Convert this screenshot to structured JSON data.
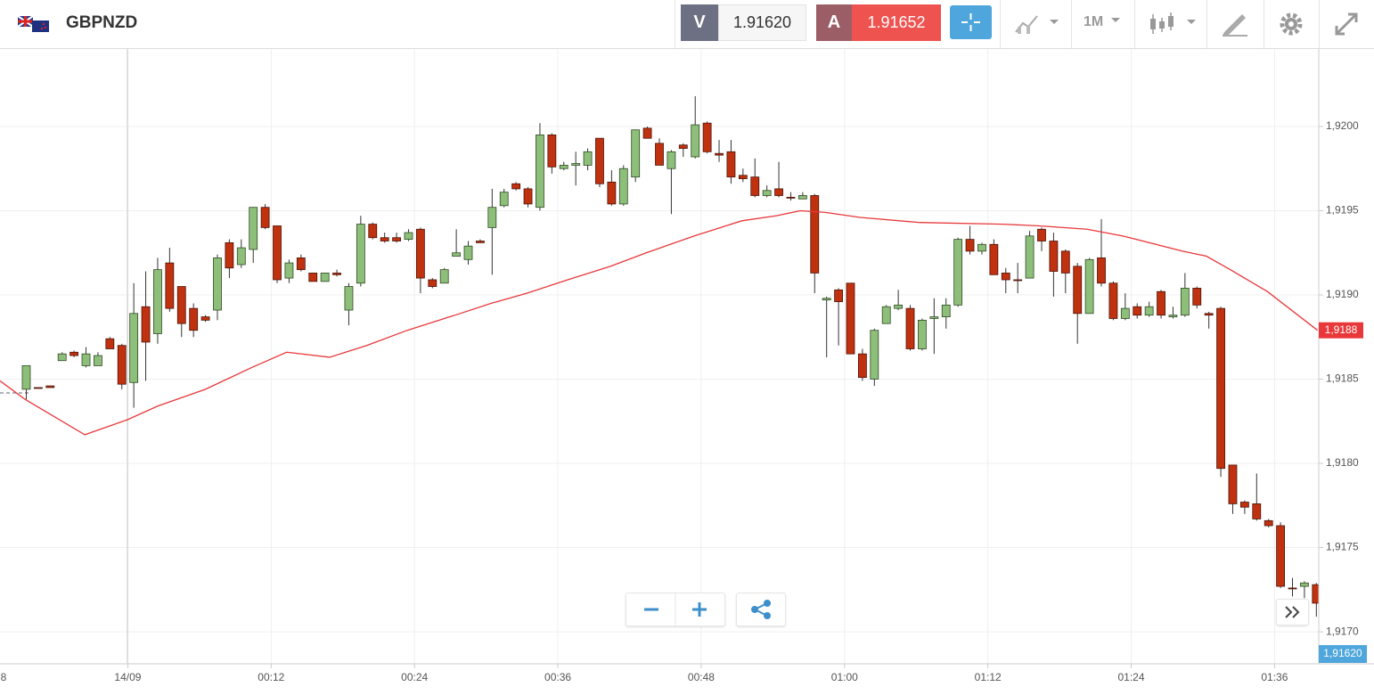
{
  "header": {
    "symbol": "GBPNZD",
    "bid_label": "V",
    "bid": "1.91620",
    "ask_label": "A",
    "ask": "1.91652",
    "timeframe": "1M"
  },
  "chart_data": {
    "type": "candlestick",
    "up_color": "#8dbf7b",
    "down_color": "#c0310f",
    "x": [
      -8.5,
      -7.5,
      -6.5,
      -5.5,
      -4.5,
      -3.5,
      -2.5,
      -1.5,
      -0.5,
      0.5,
      1.5,
      2.5,
      3.5,
      4.5,
      5.5,
      6.5,
      7.5,
      8.5,
      9.5,
      10.5,
      11.5,
      12.5,
      13.5,
      14.5,
      15.5,
      16.5,
      17.5,
      18.5,
      19.5,
      20.5,
      21.5,
      22.5,
      23.5,
      24.5,
      25.5,
      26.5,
      27.5,
      28.5,
      29.5,
      30.5,
      31.5,
      32.5,
      33.5,
      34.5,
      35.5,
      36.5,
      37.5,
      38.5,
      39.5,
      40.5,
      41.5,
      42.5,
      43.5,
      44.5,
      45.5,
      46.5,
      47.5,
      48.5,
      49.5,
      50.5,
      51.5,
      52.5,
      53.5,
      54.5,
      55.5,
      56.5,
      57.5,
      58.5,
      59.5,
      60.5,
      61.5,
      62.5,
      63.5,
      64.5,
      65.5,
      66.5,
      67.5,
      68.5,
      69.5,
      70.5,
      71.5,
      72.5,
      73.5,
      74.5,
      75.5,
      76.5,
      77.5,
      78.5,
      79.5,
      80.5,
      81.5,
      82.5,
      83.5,
      84.5,
      85.5,
      86.5,
      87.5,
      88.5,
      89.5,
      90.5,
      91.5,
      92.5,
      93.5,
      94.5,
      95.5,
      96.5,
      97.5,
      98.5,
      99.5
    ],
    "open": [
      1.91844,
      1.91845,
      1.91846,
      1.91861,
      1.91866,
      1.91858,
      1.91858,
      1.91874,
      1.9187,
      1.91848,
      1.91893,
      1.91877,
      1.91919,
      1.91905,
      1.91892,
      1.91887,
      1.91891,
      1.91931,
      1.91918,
      1.91927,
      1.91952,
      1.91941,
      1.9191,
      1.91922,
      1.91913,
      1.91908,
      1.91913,
      1.91891,
      1.91907,
      1.91942,
      1.91934,
      1.91934,
      1.91933,
      1.91939,
      1.91909,
      1.91907,
      1.91923,
      1.91921,
      1.91932,
      1.9194,
      1.91953,
      1.91966,
      1.91963,
      1.91952,
      1.91995,
      1.91975,
      1.91977,
      1.91977,
      1.91993,
      1.91967,
      1.91954,
      1.9197,
      1.91999,
      1.9199,
      1.91975,
      1.91989,
      1.91982,
      1.92002,
      1.91984,
      1.91985,
      1.91971,
      1.9197,
      1.91959,
      1.91963,
      1.91958,
      1.91957,
      1.91959,
      1.91897,
      1.91903,
      1.91907,
      1.91865,
      1.9185,
      1.91883,
      1.91892,
      1.91892,
      1.91868,
      1.91886,
      1.91887,
      1.91894,
      1.91933,
      1.91926,
      1.9193,
      1.91913,
      1.91909,
      1.9191,
      1.91939,
      1.91932,
      1.91926,
      1.91917,
      1.91889,
      1.91922,
      1.91907,
      1.91886,
      1.91893,
      1.91888,
      1.91902,
      1.91887,
      1.91888,
      1.91904,
      1.91889,
      1.91892,
      1.91799,
      1.91777,
      1.91776,
      1.91766,
      1.91763,
      1.91726,
      1.91727,
      1.91728
    ],
    "high": [
      1.91858,
      1.91845,
      1.91846,
      1.91866,
      1.91867,
      1.91869,
      1.91866,
      1.91875,
      1.91871,
      1.91907,
      1.91914,
      1.91922,
      1.91928,
      1.91905,
      1.91895,
      1.91888,
      1.91924,
      1.91933,
      1.91933,
      1.91952,
      1.91954,
      1.91941,
      1.91921,
      1.91924,
      1.91913,
      1.91913,
      1.91915,
      1.91907,
      1.91947,
      1.91943,
      1.91937,
      1.91937,
      1.91939,
      1.9194,
      1.9191,
      1.91916,
      1.91939,
      1.91932,
      1.91933,
      1.91963,
      1.91963,
      1.91967,
      1.91964,
      1.92002,
      1.91996,
      1.91979,
      1.91985,
      1.91987,
      1.91993,
      1.91974,
      1.91977,
      1.91998,
      1.92,
      1.91993,
      1.91986,
      1.9199,
      1.92018,
      1.92003,
      1.91992,
      1.91992,
      1.91975,
      1.91981,
      1.91965,
      1.91979,
      1.91961,
      1.91961,
      1.9196,
      1.91899,
      1.91904,
      1.91907,
      1.91868,
      1.9188,
      1.91894,
      1.91903,
      1.91894,
      1.91886,
      1.91898,
      1.91898,
      1.91934,
      1.91941,
      1.91931,
      1.91933,
      1.91916,
      1.91919,
      1.91938,
      1.9194,
      1.91937,
      1.91927,
      1.91919,
      1.91922,
      1.91945,
      1.91908,
      1.91901,
      1.91895,
      1.91896,
      1.91903,
      1.91893,
      1.91913,
      1.91905,
      1.9189,
      1.91893,
      1.91799,
      1.91778,
      1.91794,
      1.91767,
      1.91765,
      1.91732,
      1.9173,
      1.91729
    ],
    "low": [
      1.91838,
      1.91845,
      1.91845,
      1.91861,
      1.91863,
      1.91857,
      1.91858,
      1.91868,
      1.91844,
      1.91833,
      1.91849,
      1.91871,
      1.9189,
      1.91875,
      1.91875,
      1.91884,
      1.91885,
      1.9191,
      1.91916,
      1.91919,
      1.91939,
      1.91907,
      1.91907,
      1.91914,
      1.91908,
      1.91908,
      1.91911,
      1.91882,
      1.91905,
      1.91933,
      1.91931,
      1.91931,
      1.91932,
      1.91901,
      1.91904,
      1.91907,
      1.91923,
      1.91918,
      1.91931,
      1.91912,
      1.91952,
      1.91962,
      1.91952,
      1.9195,
      1.91972,
      1.91974,
      1.91965,
      1.91974,
      1.91964,
      1.91953,
      1.91953,
      1.91967,
      1.91993,
      1.91977,
      1.91948,
      1.91982,
      1.91981,
      1.91984,
      1.91979,
      1.91966,
      1.91967,
      1.91958,
      1.91958,
      1.91958,
      1.91956,
      1.91957,
      1.91901,
      1.91863,
      1.9187,
      1.91865,
      1.91849,
      1.91846,
      1.91883,
      1.91891,
      1.91867,
      1.91867,
      1.91865,
      1.9188,
      1.91893,
      1.91924,
      1.91924,
      1.91912,
      1.91901,
      1.91901,
      1.9191,
      1.91926,
      1.91899,
      1.91901,
      1.91871,
      1.91889,
      1.91905,
      1.91885,
      1.91885,
      1.91886,
      1.91887,
      1.91886,
      1.91886,
      1.91887,
      1.91892,
      1.9188,
      1.91792,
      1.9177,
      1.9177,
      1.91766,
      1.91762,
      1.91726,
      1.91721,
      1.9172,
      1.91709
    ],
    "close": [
      1.91858,
      1.91845,
      1.91845,
      1.91865,
      1.91864,
      1.91865,
      1.91864,
      1.91868,
      1.91847,
      1.91889,
      1.91872,
      1.91915,
      1.91892,
      1.91883,
      1.91879,
      1.91885,
      1.91922,
      1.91916,
      1.91928,
      1.91952,
      1.9194,
      1.91909,
      1.91919,
      1.91915,
      1.91908,
      1.91913,
      1.91912,
      1.91905,
      1.91942,
      1.91934,
      1.91932,
      1.91932,
      1.91937,
      1.9191,
      1.91905,
      1.91915,
      1.91925,
      1.91929,
      1.91931,
      1.91952,
      1.91961,
      1.91963,
      1.91954,
      1.91995,
      1.91976,
      1.91977,
      1.91978,
      1.91985,
      1.91966,
      1.91954,
      1.91975,
      1.91998,
      1.91993,
      1.91977,
      1.91985,
      1.91987,
      1.92001,
      1.91985,
      1.91983,
      1.9197,
      1.91969,
      1.91959,
      1.91962,
      1.91959,
      1.91958,
      1.91959,
      1.91913,
      1.91898,
      1.91896,
      1.91865,
      1.91851,
      1.91879,
      1.91893,
      1.91894,
      1.91868,
      1.91885,
      1.91887,
      1.91894,
      1.91933,
      1.91926,
      1.9193,
      1.91912,
      1.91909,
      1.91909,
      1.91935,
      1.91932,
      1.91914,
      1.91913,
      1.91889,
      1.91921,
      1.91907,
      1.91886,
      1.91892,
      1.91888,
      1.91893,
      1.91888,
      1.91888,
      1.91904,
      1.91894,
      1.91888,
      1.91797,
      1.91776,
      1.91774,
      1.91767,
      1.91763,
      1.91727,
      1.91726,
      1.91729,
      1.91717
    ],
    "lines": [
      {
        "color": "#e8383a",
        "x": [
          -10.7,
          -8.6,
          -3.6,
          0,
          2.5,
          6.5,
          10.4,
          13.3,
          16.9,
          20,
          23.4,
          27.4,
          30.4,
          33.4,
          36.4,
          40.4,
          43.4,
          47.4,
          51.4,
          54.3,
          56.3,
          58.4,
          61.3,
          66.3,
          73.3,
          76.3,
          80.3,
          83.3,
          88.3,
          90.3,
          92.3,
          95.4,
          99.6
        ],
        "values": [
          1.91849,
          1.91838,
          1.91817,
          1.91826,
          1.91834,
          1.91844,
          1.91857,
          1.91866,
          1.91863,
          1.9187,
          1.91879,
          1.91888,
          1.91895,
          1.91901,
          1.91908,
          1.91917,
          1.91925,
          1.91935,
          1.91944,
          1.91947,
          1.9195,
          1.91949,
          1.91946,
          1.91943,
          1.91942,
          1.91941,
          1.91939,
          1.91935,
          1.91926,
          1.91923,
          1.91915,
          1.91902,
          1.91879
        ]
      }
    ],
    "line_marker": {
      "value": 1.91879,
      "label": "1,9188"
    },
    "bid_marker": "1,91620",
    "xlim": [
      -10.7,
      99.7
    ],
    "xticks": [
      {
        "value": -12,
        "label": "8"
      },
      {
        "value": 0,
        "label": "14/09"
      },
      {
        "value": 12,
        "label": "00:12"
      },
      {
        "value": 24,
        "label": "00:24"
      },
      {
        "value": 36,
        "label": "00:36"
      },
      {
        "value": 48,
        "label": "00:48"
      },
      {
        "value": 60,
        "label": "01:00"
      },
      {
        "value": 72,
        "label": "01:12"
      },
      {
        "value": 84,
        "label": "01:24"
      },
      {
        "value": 96,
        "label": "01:36"
      }
    ],
    "ylim": [
      1.91681,
      1.92046
    ],
    "yticks": [
      {
        "value": 1.917,
        "label": "1,9170"
      },
      {
        "value": 1.9175,
        "label": "1,9175"
      },
      {
        "value": 1.918,
        "label": "1,9180"
      },
      {
        "value": 1.9185,
        "label": "1,9185"
      },
      {
        "value": 1.919,
        "label": "1,9190"
      },
      {
        "value": 1.9195,
        "label": "1,9195"
      },
      {
        "value": 1.92,
        "label": "1,9200"
      }
    ],
    "grid": true
  }
}
